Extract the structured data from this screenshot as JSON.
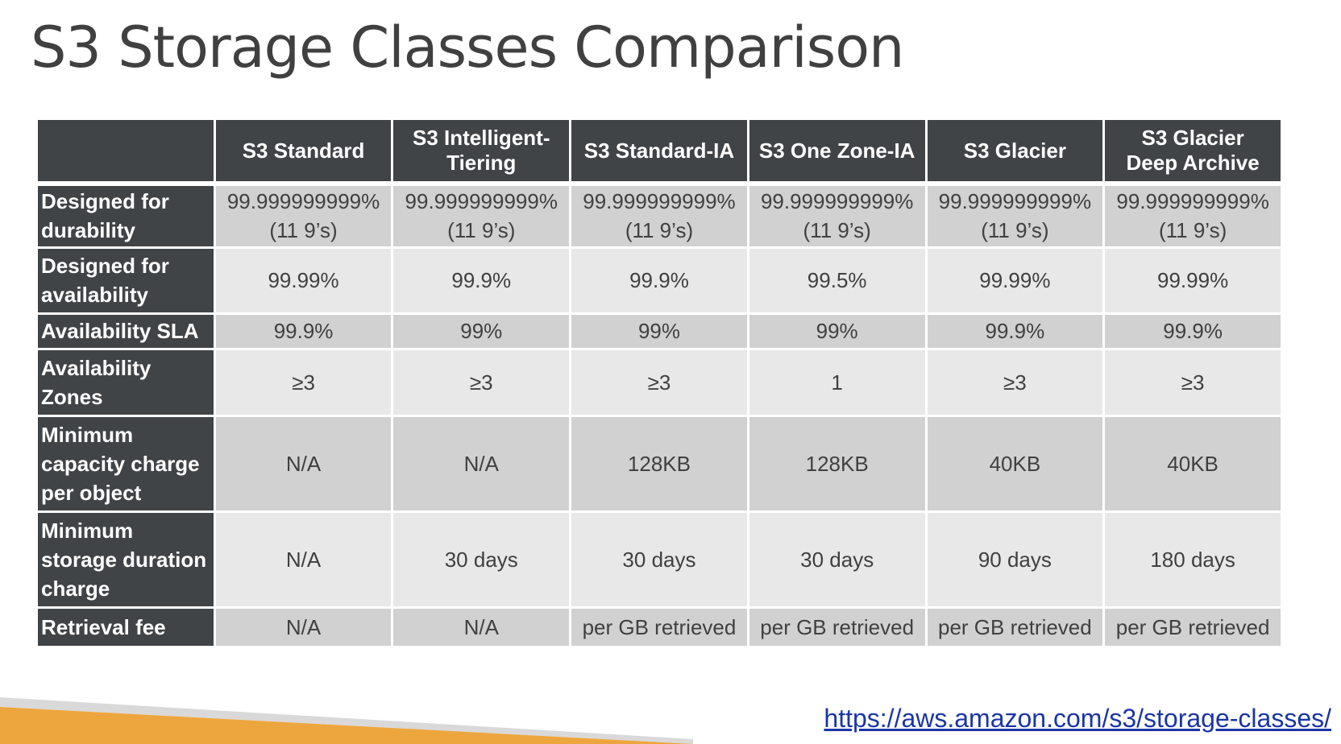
{
  "title": "S3 Storage Classes Comparison",
  "columns": [
    [
      "S3 Standard"
    ],
    [
      "S3 Intelligent-",
      "Tiering"
    ],
    [
      "S3 Standard-IA"
    ],
    [
      "S3 One Zone-IA"
    ],
    [
      "S3 Glacier"
    ],
    [
      "S3 Glacier",
      "Deep Archive"
    ]
  ],
  "rows": [
    {
      "label": [
        "Designed for",
        "durability"
      ],
      "cells": [
        [
          "99.999999999%",
          "(11 9’s)"
        ],
        [
          "99.999999999%",
          "(11 9’s)"
        ],
        [
          "99.999999999%",
          "(11 9’s)"
        ],
        [
          "99.999999999%",
          "(11 9’s)"
        ],
        [
          "99.999999999%",
          "(11 9’s)"
        ],
        [
          "99.999999999%",
          "(11 9’s)"
        ]
      ]
    },
    {
      "label": [
        "Designed for",
        "availability"
      ],
      "cells": [
        [
          "99.99%"
        ],
        [
          "99.9%"
        ],
        [
          "99.9%"
        ],
        [
          "99.5%"
        ],
        [
          "99.99%"
        ],
        [
          "99.99%"
        ]
      ]
    },
    {
      "label": [
        "Availability SLA"
      ],
      "cells": [
        [
          "99.9%"
        ],
        [
          "99%"
        ],
        [
          "99%"
        ],
        [
          "99%"
        ],
        [
          "99.9%"
        ],
        [
          "99.9%"
        ]
      ]
    },
    {
      "label": [
        "Availability",
        "Zones"
      ],
      "cells": [
        [
          "≥3"
        ],
        [
          "≥3"
        ],
        [
          "≥3"
        ],
        [
          "1"
        ],
        [
          "≥3"
        ],
        [
          "≥3"
        ]
      ]
    },
    {
      "label": [
        "Minimum",
        "capacity charge",
        "per object"
      ],
      "cells": [
        [
          "N/A"
        ],
        [
          "N/A"
        ],
        [
          "128KB"
        ],
        [
          "128KB"
        ],
        [
          "40KB"
        ],
        [
          "40KB"
        ]
      ]
    },
    {
      "label": [
        "Minimum",
        "storage duration",
        "charge"
      ],
      "cells": [
        [
          "N/A"
        ],
        [
          "30 days"
        ],
        [
          "30 days"
        ],
        [
          "30 days"
        ],
        [
          "90 days"
        ],
        [
          "180 days"
        ]
      ]
    },
    {
      "label": [
        "Retrieval fee"
      ],
      "cells": [
        [
          "N/A"
        ],
        [
          "N/A"
        ],
        [
          "per GB retrieved"
        ],
        [
          "per GB retrieved"
        ],
        [
          "per GB retrieved"
        ],
        [
          "per GB retrieved"
        ]
      ]
    }
  ],
  "source_link": "https://aws.amazon.com/s3/storage-classes/",
  "colors": {
    "header_bg": "#404447",
    "row_dark": "#d1d1d1",
    "row_light": "#e8e8e8",
    "accent_orange": "#eda63e",
    "accent_grey": "#d9d9d9",
    "link": "#1a35a8"
  }
}
